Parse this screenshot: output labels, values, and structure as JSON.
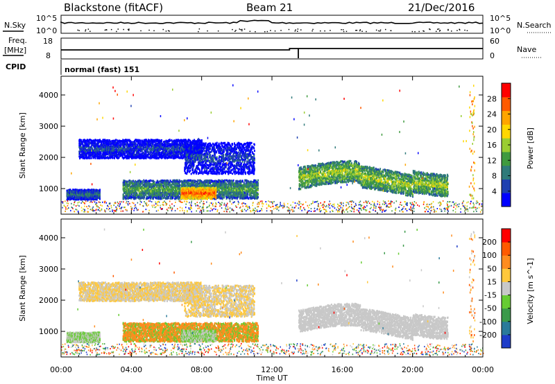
{
  "header": {
    "station": "Blackstone (fitACF)",
    "beam": "Beam 21",
    "date": "21/Dec/2016"
  },
  "sky_panel": {
    "left_label": "N.Sky",
    "right_label": "N.Search",
    "left_top": "10^5",
    "left_bottom": "10^0",
    "right_top": "10^5",
    "right_bottom": "10^0"
  },
  "freq_panel": {
    "left_label_1": "Freq.",
    "left_label_2": "[MHz]",
    "right_label": "Nave",
    "left_ticks": [
      "18",
      "8"
    ],
    "right_ticks": [
      "60",
      "0"
    ]
  },
  "cpid": {
    "label": "CPID",
    "value": "normal (fast) 151"
  },
  "chart_data": [
    {
      "type": "heatmap",
      "panel": "power",
      "ylabel": "Slant Range [km]",
      "ylim": [
        180,
        4600
      ],
      "yticks": [
        "1000",
        "2000",
        "3000",
        "4000"
      ],
      "colorbar_label": "Power [dB]",
      "colorbar_ticks": [
        "4",
        "8",
        "12",
        "16",
        "20",
        "24",
        "28"
      ],
      "colors": [
        "#0000ff",
        "#1e40b0",
        "#2f7a7a",
        "#3f9a3f",
        "#9acd32",
        "#ffd700",
        "#ffa500",
        "#ff5a00",
        "#ff0000"
      ],
      "features": [
        {
          "start": 0.3,
          "end": 2.2,
          "range_center": 840,
          "width": 160,
          "level": 2
        },
        {
          "start": 3.5,
          "end": 11.2,
          "range_center": 1000,
          "width": 300,
          "level": 3
        },
        {
          "start": 6.8,
          "end": 8.8,
          "range_center": 880,
          "width": 180,
          "level": 7
        },
        {
          "start": 1.0,
          "end": 8.0,
          "range_center": 2300,
          "width": 300,
          "level": 1
        },
        {
          "start": 7.0,
          "end": 11.0,
          "range_center": 2000,
          "width": 500,
          "level": 1
        },
        {
          "start": 13.5,
          "end": 22.0,
          "range_center": 1350,
          "width": 350,
          "level": 4
        }
      ]
    },
    {
      "type": "heatmap",
      "panel": "velocity",
      "ylabel": "Slant Range [km]",
      "ylim": [
        180,
        4600
      ],
      "yticks": [
        "1000",
        "2000",
        "3000",
        "4000"
      ],
      "colorbar_label": "Velocity [m s^-1]",
      "colorbar_ticks": [
        "200",
        "100",
        "50",
        "15",
        "-15",
        "-50",
        "-100",
        "-200"
      ],
      "colors": [
        "#1e3cc8",
        "#2a7a9a",
        "#3a9a4a",
        "#66cc33",
        "#c8c8c8",
        "#ffc83c",
        "#ff8c1e",
        "#ff5a00",
        "#ff0000"
      ],
      "x_axis": {
        "label": "Time UT",
        "ticks": [
          "00:00",
          "04:00",
          "08:00",
          "12:00",
          "16:00",
          "20:00",
          "00:00"
        ]
      }
    }
  ]
}
